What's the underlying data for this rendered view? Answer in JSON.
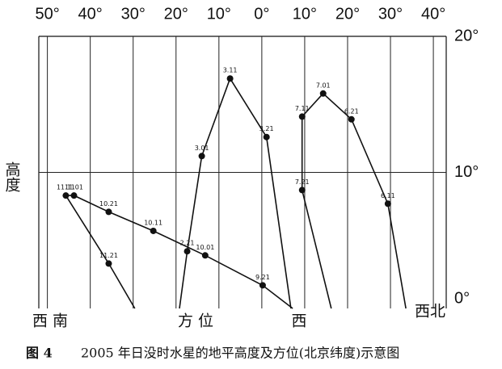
{
  "chart_data": {
    "type": "scatter",
    "xlabel": "方位",
    "ylabel": "高度",
    "direction_labels": [
      "西南",
      "西",
      "西北"
    ],
    "figure_number": "图 4",
    "title": "2005 年日没时水星的地平高度及方位(北京纬度)示意图",
    "xlim": [
      -52,
      43
    ],
    "ylim": [
      0,
      20
    ],
    "xticks": [
      {
        "value": -50,
        "label": "50°"
      },
      {
        "value": -40,
        "label": "40°"
      },
      {
        "value": -30,
        "label": "30°"
      },
      {
        "value": -20,
        "label": "20°"
      },
      {
        "value": -10,
        "label": "10°"
      },
      {
        "value": 0,
        "label": "0°"
      },
      {
        "value": 10,
        "label": "10°"
      },
      {
        "value": 20,
        "label": "20°"
      },
      {
        "value": 30,
        "label": "30°"
      },
      {
        "value": 40,
        "label": "40°"
      }
    ],
    "yticks": [
      {
        "value": 0,
        "label": "0°"
      },
      {
        "value": 10,
        "label": "10°"
      },
      {
        "value": 20,
        "label": "20°"
      }
    ],
    "grid": true,
    "series": [
      {
        "color": "#111111",
        "x": [
          -19.2,
          -17.4,
          -14.0,
          -7.4,
          1.1,
          6.8
        ],
        "values": [
          0,
          4.2,
          11.2,
          16.9,
          12.6,
          0
        ],
        "point_labels": [
          null,
          "2.21",
          "3.01",
          "3.11",
          "3.21",
          null
        ]
      },
      {
        "color": "#111111",
        "x": [
          33.6,
          29.4,
          20.9,
          14.3,
          9.4,
          9.4,
          16.2
        ],
        "values": [
          0,
          7.7,
          13.9,
          15.8,
          14.1,
          8.7,
          0
        ],
        "point_labels": [
          null,
          "6.11",
          "6.21",
          "7.01",
          "7.11",
          "7.21",
          null
        ]
      },
      {
        "color": "#111111",
        "x": [
          7.2,
          0.2,
          -13.2,
          -25.3,
          -35.7,
          -43.8,
          -45.7,
          -35.7,
          -29.6
        ],
        "values": [
          0,
          1.7,
          3.9,
          5.7,
          7.1,
          8.3,
          8.3,
          3.3,
          0
        ],
        "point_labels": [
          null,
          "9.21",
          "10.01",
          "10.11",
          "10.21",
          "11.01",
          "11.11",
          "11.21",
          null
        ]
      }
    ]
  }
}
